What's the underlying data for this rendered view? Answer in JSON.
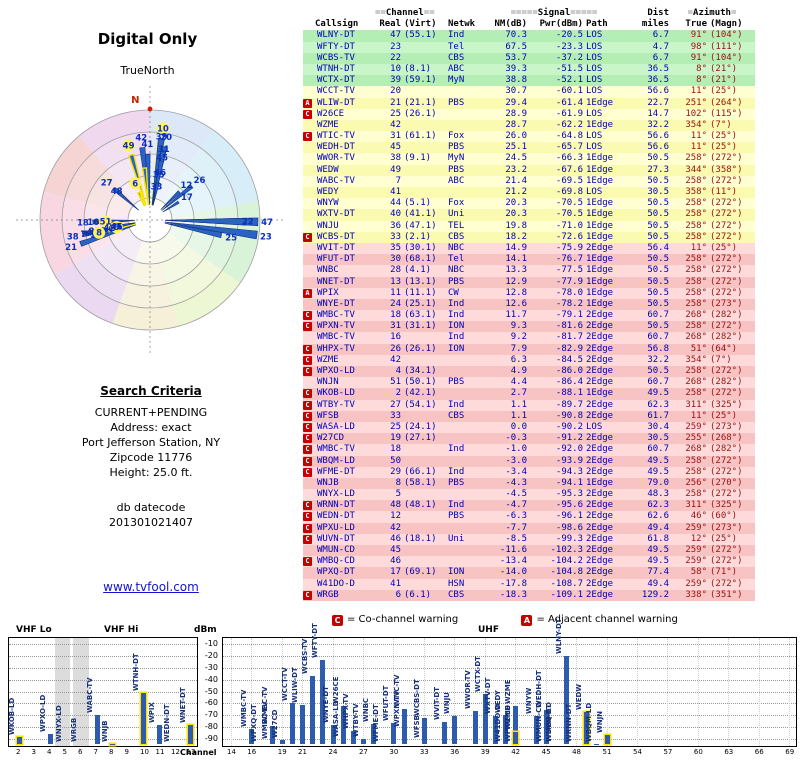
{
  "radar": {
    "title": "Digital Only",
    "north_label": "TrueNorth",
    "compass_n": "N",
    "sectors": [
      {
        "from": 0,
        "to": 35,
        "color": "#dce7f8"
      },
      {
        "from": 35,
        "to": 80,
        "color": "#d7eef8"
      },
      {
        "from": 80,
        "to": 125,
        "color": "#d9f3d9"
      },
      {
        "from": 125,
        "to": 165,
        "color": "#eef7d4"
      },
      {
        "from": 165,
        "to": 200,
        "color": "#f6f0d8"
      },
      {
        "from": 200,
        "to": 240,
        "color": "#ead9f0"
      },
      {
        "from": 240,
        "to": 285,
        "color": "#f8d7e3"
      },
      {
        "from": 285,
        "to": 320,
        "color": "#f6d4d4"
      },
      {
        "from": 320,
        "to": 360,
        "color": "#f0d8ee"
      }
    ]
  },
  "search": {
    "heading": "Search Criteria",
    "lines": [
      "CURRENT+PENDING",
      "Address: exact",
      "Port Jefferson Station, NY",
      "Zipcode 11776",
      "Height: 25.0 ft."
    ],
    "db_label": "db datecode",
    "db_code": "201301021407",
    "link": "www.tvfool.com"
  },
  "table": {
    "groups": {
      "channel": {
        "pre": "==",
        "label": "Channel",
        "post": "=="
      },
      "signal": {
        "pre": "=====",
        "label": "Signal",
        "post": "====="
      },
      "dist": {
        "label": "Dist"
      },
      "azimuth": {
        "pre": "=",
        "label": "Azimuth",
        "post": "="
      }
    },
    "columns": {
      "callsign": "Callsign",
      "real": "Real",
      "virt": "(Virt)",
      "netwk": "Netwk",
      "nm": "NM(dB)",
      "pwr": "Pwr(dBm)",
      "path": "Path",
      "miles": "miles",
      "true": "True",
      "magn": "(Magn)"
    },
    "rows": [
      {
        "m": "",
        "cs": "WLNY-DT",
        "real": "47",
        "virt": "(55.1)",
        "net": "Ind",
        "nm": "70.3",
        "pwr": "-20.5",
        "path": "LOS",
        "mi": "6.7",
        "tru": "91°",
        "mag": "(104°)",
        "band": "g"
      },
      {
        "m": "",
        "cs": "WFTY-DT",
        "real": "23",
        "virt": "",
        "net": "Tel",
        "nm": "67.5",
        "pwr": "-23.3",
        "path": "LOS",
        "mi": "4.7",
        "tru": "98°",
        "mag": "(111°)",
        "band": "g"
      },
      {
        "m": "",
        "cs": "WCBS-TV",
        "real": "22",
        "virt": "",
        "net": "CBS",
        "nm": "53.7",
        "pwr": "-37.2",
        "path": "LOS",
        "mi": "6.7",
        "tru": "91°",
        "mag": "(104°)",
        "band": "g"
      },
      {
        "m": "",
        "cs": "WTNH-DT",
        "real": "10",
        "virt": "(8.1)",
        "net": "ABC",
        "nm": "39.3",
        "pwr": "-51.5",
        "path": "LOS",
        "mi": "36.5",
        "tru": "8°",
        "mag": "(21°)",
        "band": "g",
        "hl": true
      },
      {
        "m": "",
        "cs": "WCTX-DT",
        "real": "39",
        "virt": "(59.1)",
        "net": "MyN",
        "nm": "38.8",
        "pwr": "-52.1",
        "path": "LOS",
        "mi": "36.5",
        "tru": "8°",
        "mag": "(21°)",
        "band": "g"
      },
      {
        "m": "",
        "cs": "WCCT-TV",
        "real": "20",
        "virt": "",
        "net": "",
        "nm": "30.7",
        "pwr": "-60.1",
        "path": "LOS",
        "mi": "56.6",
        "tru": "11°",
        "mag": "(25°)",
        "band": "y"
      },
      {
        "m": "A",
        "cs": "WLIW-DT",
        "real": "21",
        "virt": "(21.1)",
        "net": "PBS",
        "nm": "29.4",
        "pwr": "-61.4",
        "path": "1Edge",
        "mi": "22.7",
        "tru": "251°",
        "mag": "(264°)",
        "band": "y"
      },
      {
        "m": "C",
        "cs": "W26CE",
        "real": "25",
        "virt": "(26.1)",
        "net": "",
        "nm": "28.9",
        "pwr": "-61.9",
        "path": "LOS",
        "mi": "14.7",
        "tru": "102°",
        "mag": "(115°)",
        "band": "y"
      },
      {
        "m": "",
        "cs": "WZME",
        "real": "42",
        "virt": "",
        "net": "",
        "nm": "28.7",
        "pwr": "-62.2",
        "path": "1Edge",
        "mi": "32.2",
        "tru": "354°",
        "mag": "(7°)",
        "band": "y"
      },
      {
        "m": "C",
        "cs": "WTIC-TV",
        "real": "31",
        "virt": "(61.1)",
        "net": "Fox",
        "nm": "26.0",
        "pwr": "-64.8",
        "path": "LOS",
        "mi": "56.6",
        "tru": "11°",
        "mag": "(25°)",
        "band": "y"
      },
      {
        "m": "",
        "cs": "WEDH-DT",
        "real": "45",
        "virt": "",
        "net": "PBS",
        "nm": "25.1",
        "pwr": "-65.7",
        "path": "LOS",
        "mi": "56.6",
        "tru": "11°",
        "mag": "(25°)",
        "band": "y"
      },
      {
        "m": "",
        "cs": "WWOR-TV",
        "real": "38",
        "virt": "(9.1)",
        "net": "MyN",
        "nm": "24.5",
        "pwr": "-66.3",
        "path": "1Edge",
        "mi": "50.5",
        "tru": "258°",
        "mag": "(272°)",
        "band": "y"
      },
      {
        "m": "",
        "cs": "WEDW",
        "real": "49",
        "virt": "",
        "net": "PBS",
        "nm": "23.2",
        "pwr": "-67.6",
        "path": "1Edge",
        "mi": "27.3",
        "tru": "344°",
        "mag": "(358°)",
        "band": "y",
        "hl": true
      },
      {
        "m": "",
        "cs": "WABC-TV",
        "real": "7",
        "virt": "",
        "net": "ABC",
        "nm": "21.4",
        "pwr": "-69.5",
        "path": "1Edge",
        "mi": "50.5",
        "tru": "258°",
        "mag": "(272°)",
        "band": "y"
      },
      {
        "m": "",
        "cs": "WEDY",
        "real": "41",
        "virt": "",
        "net": "",
        "nm": "21.2",
        "pwr": "-69.8",
        "path": "LOS",
        "mi": "30.5",
        "tru": "358°",
        "mag": "(11°)",
        "band": "y"
      },
      {
        "m": "",
        "cs": "WNYW",
        "real": "44",
        "virt": "(5.1)",
        "net": "Fox",
        "nm": "20.3",
        "pwr": "-70.5",
        "path": "1Edge",
        "mi": "50.5",
        "tru": "258°",
        "mag": "(272°)",
        "band": "y"
      },
      {
        "m": "",
        "cs": "WXTV-DT",
        "real": "40",
        "virt": "(41.1)",
        "net": "Uni",
        "nm": "20.3",
        "pwr": "-70.5",
        "path": "1Edge",
        "mi": "50.5",
        "tru": "258°",
        "mag": "(272°)",
        "band": "y"
      },
      {
        "m": "",
        "cs": "WNJU",
        "real": "36",
        "virt": "(47.1)",
        "net": "TEL",
        "nm": "19.8",
        "pwr": "-71.0",
        "path": "1Edge",
        "mi": "50.5",
        "tru": "258°",
        "mag": "(272°)",
        "band": "y"
      },
      {
        "m": "C",
        "cs": "WCBS-DT",
        "real": "33",
        "virt": "(2.1)",
        "net": "CBS",
        "nm": "18.2",
        "pwr": "-72.6",
        "path": "1Edge",
        "mi": "50.5",
        "tru": "258°",
        "mag": "(272°)",
        "band": "y"
      },
      {
        "m": "",
        "cs": "WVIT-DT",
        "real": "35",
        "virt": "(30.1)",
        "net": "NBC",
        "nm": "14.9",
        "pwr": "-75.9",
        "path": "2Edge",
        "mi": "56.4",
        "tru": "11°",
        "mag": "(25°)",
        "band": "p"
      },
      {
        "m": "",
        "cs": "WFUT-DT",
        "real": "30",
        "virt": "(68.1)",
        "net": "Tel",
        "nm": "14.1",
        "pwr": "-76.7",
        "path": "1Edge",
        "mi": "50.5",
        "tru": "258°",
        "mag": "(272°)",
        "band": "p"
      },
      {
        "m": "",
        "cs": "WNBC",
        "real": "28",
        "virt": "(4.1)",
        "net": "NBC",
        "nm": "13.3",
        "pwr": "-77.5",
        "path": "1Edge",
        "mi": "50.5",
        "tru": "258°",
        "mag": "(272°)",
        "band": "p"
      },
      {
        "m": "",
        "cs": "WNET-DT",
        "real": "13",
        "virt": "(13.1)",
        "net": "PBS",
        "nm": "12.9",
        "pwr": "-77.9",
        "path": "1Edge",
        "mi": "50.5",
        "tru": "258°",
        "mag": "(272°)",
        "band": "p",
        "hl": true
      },
      {
        "m": "A",
        "cs": "WPIX",
        "real": "11",
        "virt": "(11.1)",
        "net": "CW",
        "nm": "12.8",
        "pwr": "-78.0",
        "path": "1Edge",
        "mi": "50.5",
        "tru": "258°",
        "mag": "(272°)",
        "band": "p"
      },
      {
        "m": "",
        "cs": "WNYE-DT",
        "real": "24",
        "virt": "(25.1)",
        "net": "Ind",
        "nm": "12.6",
        "pwr": "-78.2",
        "path": "1Edge",
        "mi": "50.5",
        "tru": "258°",
        "mag": "(273°)",
        "band": "p"
      },
      {
        "m": "C",
        "cs": "WMBC-TV",
        "real": "18",
        "virt": "(63.1)",
        "net": "Ind",
        "nm": "11.7",
        "pwr": "-79.1",
        "path": "2Edge",
        "mi": "60.7",
        "tru": "268°",
        "mag": "(282°)",
        "band": "p"
      },
      {
        "m": "C",
        "cs": "WPXN-TV",
        "real": "31",
        "virt": "(31.1)",
        "net": "ION",
        "nm": "9.3",
        "pwr": "-81.6",
        "path": "2Edge",
        "mi": "50.5",
        "tru": "258°",
        "mag": "(272°)",
        "band": "p"
      },
      {
        "m": "",
        "cs": "WMBC-TV",
        "real": "16",
        "virt": "",
        "net": "Ind",
        "nm": "9.2",
        "pwr": "-81.7",
        "path": "2Edge",
        "mi": "60.7",
        "tru": "268°",
        "mag": "(282°)",
        "band": "p"
      },
      {
        "m": "C",
        "cs": "WHPX-TV",
        "real": "26",
        "virt": "(26.1)",
        "net": "ION",
        "nm": "7.9",
        "pwr": "-82.9",
        "path": "2Edge",
        "mi": "56.8",
        "tru": "51°",
        "mag": "(64°)",
        "band": "p"
      },
      {
        "m": "C",
        "cs": "WZME",
        "real": "42",
        "virt": "",
        "net": "",
        "nm": "6.3",
        "pwr": "-84.5",
        "path": "2Edge",
        "mi": "32.2",
        "tru": "354°",
        "mag": "(7°)",
        "band": "p",
        "hl": true
      },
      {
        "m": "C",
        "cs": "WPXO-LD",
        "real": "4",
        "virt": "(34.1)",
        "net": "",
        "nm": "4.9",
        "pwr": "-86.0",
        "path": "2Edge",
        "mi": "50.5",
        "tru": "258°",
        "mag": "(272°)",
        "band": "p"
      },
      {
        "m": "",
        "cs": "WNJN",
        "real": "51",
        "virt": "(50.1)",
        "net": "PBS",
        "nm": "4.4",
        "pwr": "-86.4",
        "path": "2Edge",
        "mi": "60.7",
        "tru": "268°",
        "mag": "(282°)",
        "band": "p",
        "hl": true
      },
      {
        "m": "C",
        "cs": "WKOB-LD",
        "real": "2",
        "virt": "(42.1)",
        "net": "",
        "nm": "2.7",
        "pwr": "-88.1",
        "path": "1Edge",
        "mi": "49.5",
        "tru": "258°",
        "mag": "(272°)",
        "band": "p",
        "hl": true
      },
      {
        "m": "C",
        "cs": "WTBY-TV",
        "real": "27",
        "virt": "(54.1)",
        "net": "Ind",
        "nm": "1.1",
        "pwr": "-89.7",
        "path": "2Edge",
        "mi": "62.3",
        "tru": "311°",
        "mag": "(325°)",
        "band": "p"
      },
      {
        "m": "C",
        "cs": "WFSB",
        "real": "33",
        "virt": "",
        "net": "CBS",
        "nm": "1.1",
        "pwr": "-90.8",
        "path": "2Edge",
        "mi": "61.7",
        "tru": "11°",
        "mag": "(25°)",
        "band": "p"
      },
      {
        "m": "C",
        "cs": "WASA-LD",
        "real": "25",
        "virt": "(24.1)",
        "net": "",
        "nm": "0.0",
        "pwr": "-90.2",
        "path": "LOS",
        "mi": "30.4",
        "tru": "259°",
        "mag": "(273°)",
        "band": "p"
      },
      {
        "m": "C",
        "cs": "W27CD",
        "real": "19",
        "virt": "(27.1)",
        "net": "",
        "nm": "-0.3",
        "pwr": "-91.2",
        "path": "2Edge",
        "mi": "30.5",
        "tru": "255°",
        "mag": "(268°)",
        "band": "p"
      },
      {
        "m": "C",
        "cs": "WMBC-TV",
        "real": "18",
        "virt": "",
        "net": "Ind",
        "nm": "-1.0",
        "pwr": "-92.0",
        "path": "2Edge",
        "mi": "60.7",
        "tru": "268°",
        "mag": "(282°)",
        "band": "p"
      },
      {
        "m": "C",
        "cs": "WBQM-LD",
        "real": "50",
        "virt": "",
        "net": "",
        "nm": "-3.0",
        "pwr": "-93.9",
        "path": "2Edge",
        "mi": "49.5",
        "tru": "258°",
        "mag": "(272°)",
        "band": "p"
      },
      {
        "m": "C",
        "cs": "WFME-DT",
        "real": "29",
        "virt": "(66.1)",
        "net": "Ind",
        "nm": "-3.4",
        "pwr": "-94.3",
        "path": "2Edge",
        "mi": "49.5",
        "tru": "258°",
        "mag": "(272°)",
        "band": "p"
      },
      {
        "m": "",
        "cs": "WNJB",
        "real": "8",
        "virt": "(58.1)",
        "net": "PBS",
        "nm": "-4.3",
        "pwr": "-94.1",
        "path": "1Edge",
        "mi": "79.0",
        "tru": "256°",
        "mag": "(270°)",
        "band": "p",
        "hl": true
      },
      {
        "m": "",
        "cs": "WNYX-LD",
        "real": "5",
        "virt": "",
        "net": "",
        "nm": "-4.5",
        "pwr": "-95.3",
        "path": "2Edge",
        "mi": "48.3",
        "tru": "258°",
        "mag": "(272°)",
        "band": "p",
        "hl": true
      },
      {
        "m": "C",
        "cs": "WRNN-DT",
        "real": "48",
        "virt": "(48.1)",
        "net": "Ind",
        "nm": "-4.7",
        "pwr": "-95.6",
        "path": "2Edge",
        "mi": "62.3",
        "tru": "311°",
        "mag": "(325°)",
        "band": "p"
      },
      {
        "m": "C",
        "cs": "WEDN-DT",
        "real": "12",
        "virt": "",
        "net": "PBS",
        "nm": "-6.3",
        "pwr": "-96.1",
        "path": "2Edge",
        "mi": "62.6",
        "tru": "46°",
        "mag": "(60°)",
        "band": "p"
      },
      {
        "m": "C",
        "cs": "WPXU-LD",
        "real": "42",
        "virt": "",
        "net": "",
        "nm": "-7.7",
        "pwr": "-98.6",
        "path": "2Edge",
        "mi": "49.4",
        "tru": "259°",
        "mag": "(273°)",
        "band": "p"
      },
      {
        "m": "C",
        "cs": "WUVN-DT",
        "real": "46",
        "virt": "(18.1)",
        "net": "Uni",
        "nm": "-8.5",
        "pwr": "-99.3",
        "path": "2Edge",
        "mi": "61.8",
        "tru": "12°",
        "mag": "(25°)",
        "band": "p"
      },
      {
        "m": "",
        "cs": "WMUN-CD",
        "real": "45",
        "virt": "",
        "net": "",
        "nm": "-11.6",
        "pwr": "-102.3",
        "path": "2Edge",
        "mi": "49.5",
        "tru": "259°",
        "mag": "(272°)",
        "band": "p"
      },
      {
        "m": "C",
        "cs": "WMBQ-CD",
        "real": "46",
        "virt": "",
        "net": "",
        "nm": "-13.4",
        "pwr": "-104.2",
        "path": "2Edge",
        "mi": "49.5",
        "tru": "259°",
        "mag": "(272°)",
        "band": "p"
      },
      {
        "m": "",
        "cs": "WPXQ-DT",
        "real": "17",
        "virt": "(69.1)",
        "net": "ION",
        "nm": "-14.0",
        "pwr": "-104.8",
        "path": "2Edge",
        "mi": "77.4",
        "tru": "58°",
        "mag": "(71°)",
        "band": "p"
      },
      {
        "m": "",
        "cs": "W41DO-D",
        "real": "41",
        "virt": "",
        "net": "HSN",
        "nm": "-17.8",
        "pwr": "-108.7",
        "path": "2Edge",
        "mi": "49.4",
        "tru": "259°",
        "mag": "(272°)",
        "band": "p"
      },
      {
        "m": "C",
        "cs": "WRGB",
        "real": "6",
        "virt": "(6.1)",
        "net": "CBS",
        "nm": "-18.3",
        "pwr": "-109.1",
        "path": "2Edge",
        "mi": "129.2",
        "tru": "338°",
        "mag": "(351°)",
        "band": "p",
        "hl": true
      }
    ]
  },
  "legend": {
    "c_symbol": "C",
    "c_text": "= Co-channel warning",
    "a_symbol": "A",
    "a_text": "= Adjacent channel warning"
  },
  "chart": {
    "vhf_lo_label": "VHF Lo",
    "vhf_hi_label": "VHF Hi",
    "uhf_label": "UHF",
    "ylabel": "dBm",
    "xlabel": "Channel",
    "y_ticks": [
      -10,
      -20,
      -30,
      -40,
      -50,
      -60,
      -70,
      -80,
      -90
    ],
    "left_ticks": [
      2,
      3,
      4,
      5,
      6,
      7,
      8,
      9,
      10,
      11,
      12,
      13
    ],
    "right_ticks": [
      14,
      16,
      19,
      21,
      24,
      27,
      30,
      33,
      36,
      39,
      42,
      45,
      48,
      51,
      54,
      57,
      60,
      63,
      66,
      69
    ],
    "gray_bands": [
      [
        4.3,
        5.3
      ],
      [
        5.5,
        6.5
      ]
    ]
  },
  "colors": {
    "strong_row": "#b5eeb5",
    "medium_row": "#fafab0",
    "weak_row": "#f7c3c3",
    "value_text": "#0000b4",
    "azimuth_text": "#9b1010",
    "warning": "#c40000",
    "bar": "#2d5cae",
    "highlight": "#ffe000",
    "link": "#1414cc"
  }
}
